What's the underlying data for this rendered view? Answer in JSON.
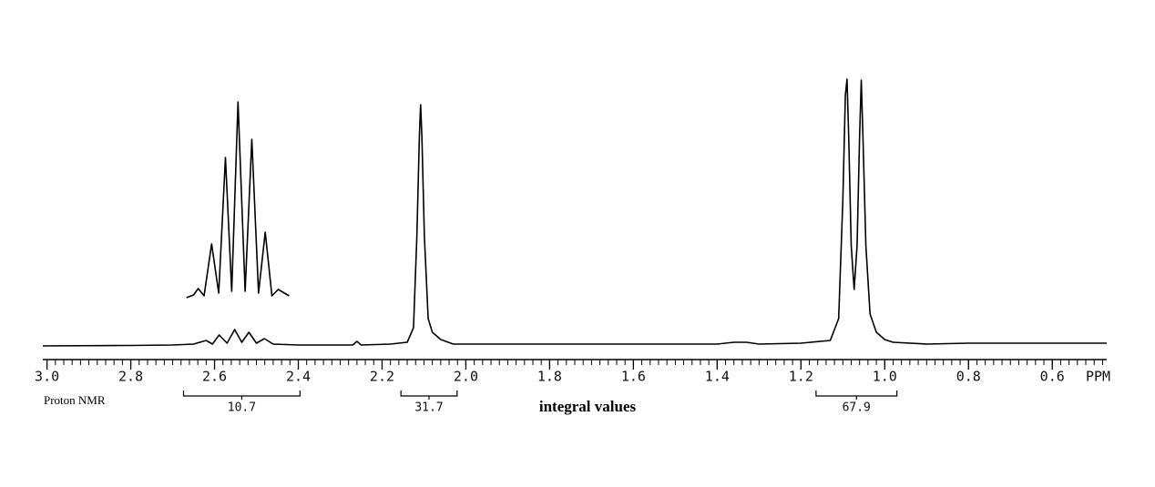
{
  "chart_data": {
    "type": "line",
    "xlabel": "PPM",
    "caption": "Proton NMR",
    "integral_title": "integral values",
    "xlim": [
      3.01,
      0.47
    ],
    "ylim": [
      0,
      300
    ],
    "xticks": [
      {
        "value": 3,
        "label": "3.0"
      },
      2.8,
      2.6,
      2.4,
      2.2,
      {
        "value": 2,
        "label": "2.0"
      },
      1.8,
      1.6,
      1.4,
      1.2,
      {
        "value": 1,
        "label": "1.0"
      },
      0.8,
      0.6
    ],
    "xminor_step": 0.02,
    "series": [
      {
        "color": "#000000",
        "x": [
          3.01,
          2.8,
          2.7,
          2.65,
          2.62,
          2.605,
          2.589,
          2.57,
          2.552,
          2.535,
          2.518,
          2.5,
          2.481,
          2.46,
          2.4,
          2.27,
          2.26,
          2.25,
          2.18,
          2.14,
          2.125,
          2.117,
          2.111,
          2.108,
          2.105,
          2.099,
          2.09,
          2.08,
          2.06,
          2.03,
          1.9,
          1.6,
          1.4,
          1.36,
          1.33,
          1.3,
          1.2,
          1.13,
          1.11,
          1.1,
          1.094,
          1.09,
          1.086,
          1.08,
          1.073,
          1.066,
          1.06,
          1.056,
          1.052,
          1.045,
          1.035,
          1.02,
          1.0,
          0.98,
          0.9,
          0.8,
          0.6,
          0.47
        ],
        "values": [
          0,
          0.5,
          1,
          2,
          6,
          2,
          12,
          3,
          18,
          4,
          15,
          3,
          8,
          2,
          1,
          1,
          5,
          1,
          2,
          4,
          20,
          120,
          230,
          265,
          230,
          120,
          30,
          15,
          7,
          2,
          2,
          2,
          2,
          4,
          4,
          2,
          3,
          6,
          30,
          160,
          275,
          293,
          230,
          110,
          62,
          110,
          230,
          292,
          230,
          110,
          35,
          15,
          7,
          4,
          2,
          3,
          3,
          3
        ]
      },
      {
        "color": "#000000",
        "x": [
          2.667,
          2.65,
          2.639,
          2.625,
          2.607,
          2.59,
          2.574,
          2.559,
          2.544,
          2.527,
          2.511,
          2.495,
          2.479,
          2.463,
          2.448,
          2.422
        ],
        "values": [
          3,
          6,
          13,
          5,
          62,
          8,
          157,
          10,
          218,
          10,
          177,
          8,
          75,
          5,
          12,
          5
        ]
      }
    ],
    "integrals": [
      {
        "from": 2.674,
        "to": 2.396,
        "value": 10.7
      },
      {
        "from": 2.155,
        "to": 2.021,
        "value": 31.7
      },
      {
        "from": 1.164,
        "to": 0.971,
        "value": 67.9
      }
    ]
  }
}
